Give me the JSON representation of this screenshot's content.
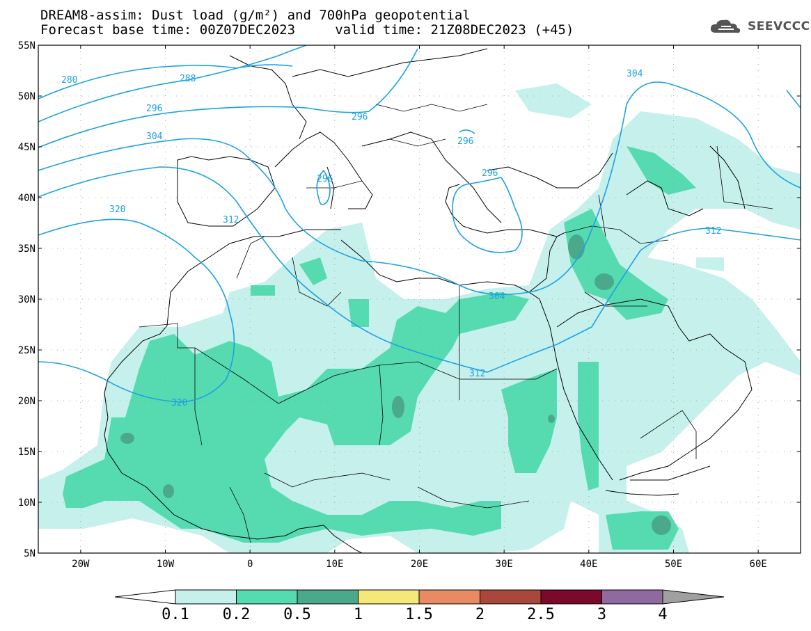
{
  "title": {
    "line1": "DREAM8-assim: Dust load (g/m²) and 700hPa geopotential",
    "line2": "Forecast base time: 00Z07DEC2023     valid time: 21Z08DEC2023 (+45)"
  },
  "logo": {
    "text": "SEEVCCC",
    "icon": "cloud-icon"
  },
  "colors": {
    "contour": "#1ba1e2",
    "dust_light": "#c6f0ec",
    "dust_mid": "#56dbb0",
    "dust_dark": "#4aa98a"
  },
  "map": {
    "lon_range": [
      -25,
      65
    ],
    "lat_range": [
      5,
      55
    ],
    "lat_ticks": [
      "55N",
      "50N",
      "45N",
      "40N",
      "35N",
      "30N",
      "25N",
      "20N",
      "15N",
      "10N",
      "5N"
    ],
    "lon_ticks": [
      "20W",
      "10W",
      "0",
      "10E",
      "20E",
      "30E",
      "40E",
      "50E",
      "60E"
    ],
    "contour_labels": [
      "280",
      "288",
      "296",
      "304",
      "320",
      "296",
      "312",
      "296",
      "296",
      "304",
      "312",
      "320",
      "304",
      "312"
    ]
  },
  "colorbar": {
    "labels": [
      "0.1",
      "0.2",
      "0.5",
      "1",
      "1.5",
      "2",
      "2.5",
      "3",
      "4"
    ],
    "colors": [
      "#c6f0ec",
      "#56dbb0",
      "#4aa98a",
      "#f5e87a",
      "#e88a62",
      "#a8483c",
      "#7b0a2a",
      "#8e6aa0"
    ]
  }
}
